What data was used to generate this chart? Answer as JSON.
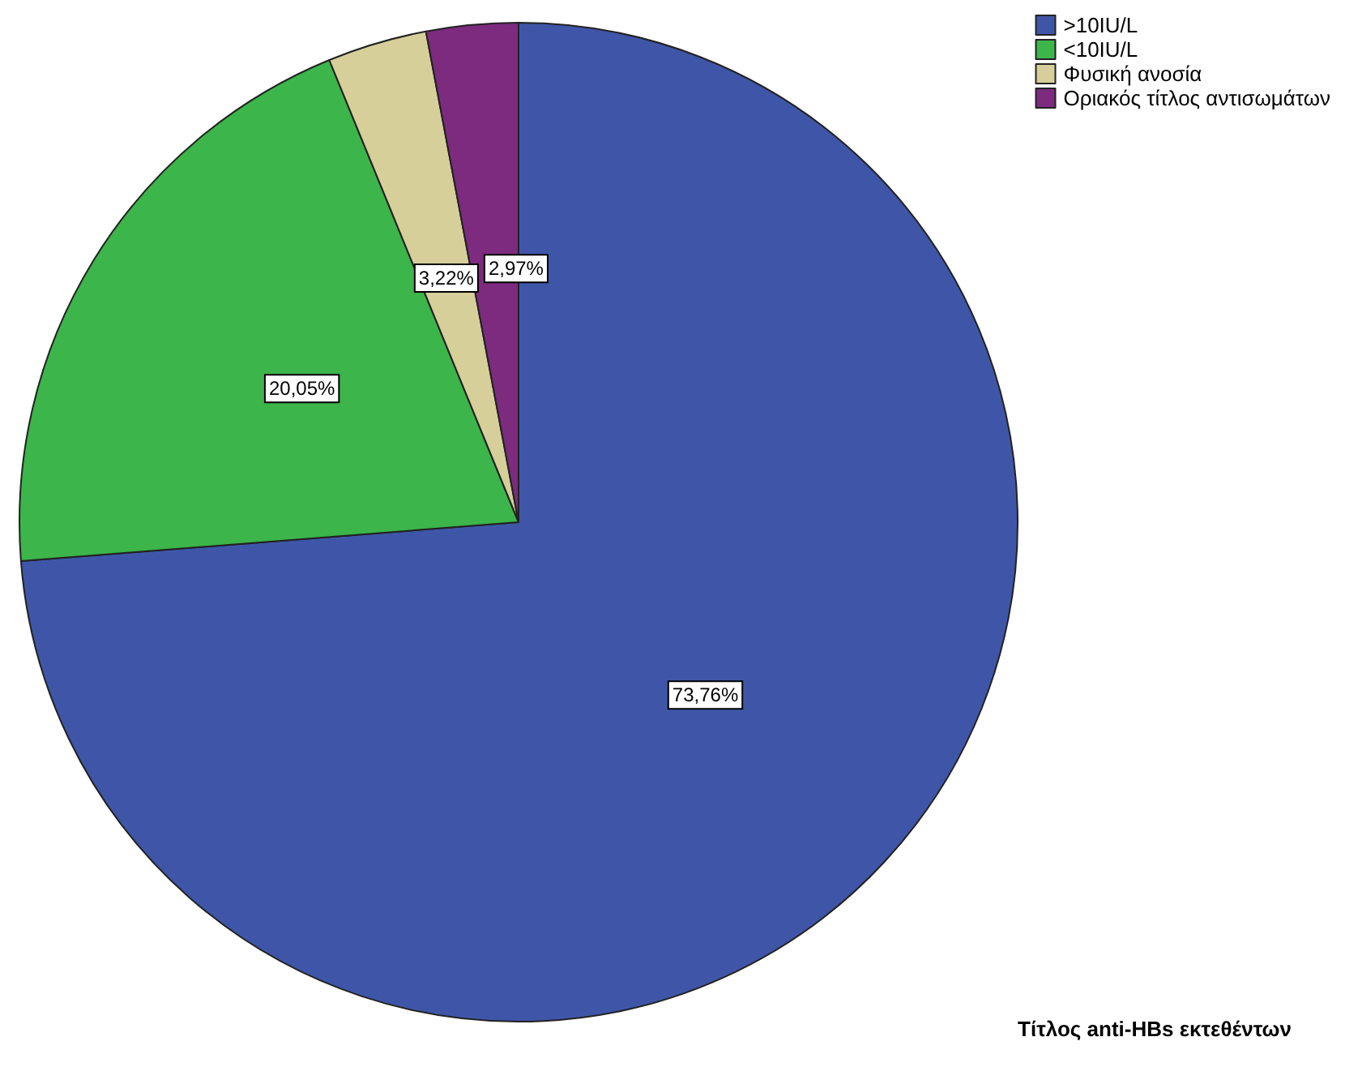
{
  "chart_data": {
    "type": "pie",
    "title": "Τίτλος anti-HBs εκτεθέντων",
    "categories": [
      ">10IU/L",
      "<10IU/L",
      "Φυσική ανοσία",
      "Οριακός τίτλος αντισωμάτων"
    ],
    "values": [
      73.76,
      20.05,
      3.22,
      2.97
    ],
    "value_labels": [
      "73,76%",
      "20,05%",
      "3,22%",
      "2,97%"
    ],
    "colors": [
      "#3f56a8",
      "#3cb54a",
      "#d6cf9a",
      "#7c2b7f"
    ],
    "legend": "top right"
  }
}
